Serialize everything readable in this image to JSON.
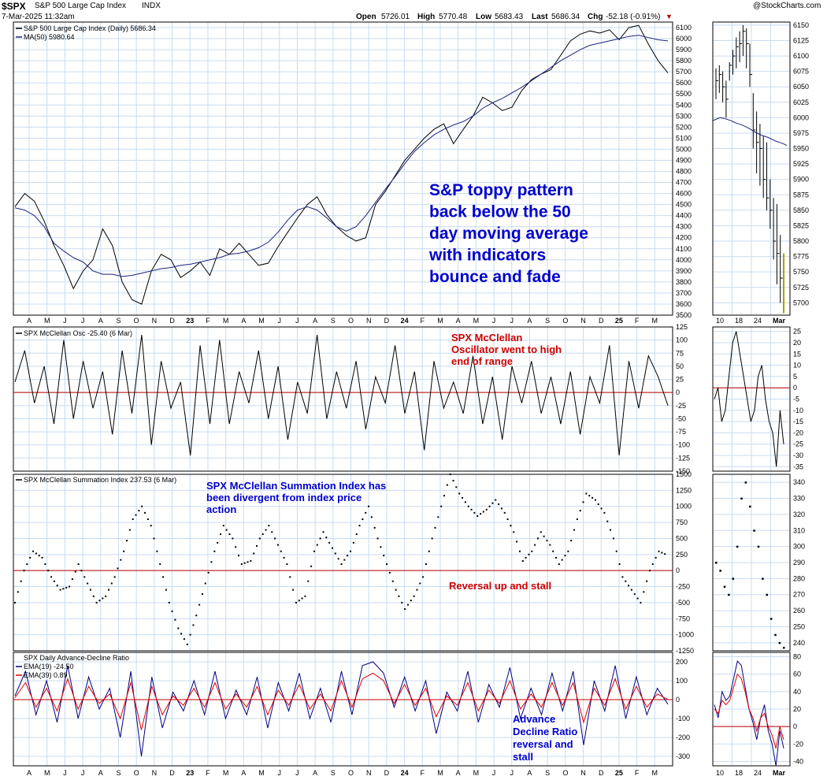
{
  "header": {
    "ticker": "$SPX",
    "name": "S&P 500 Large Cap Index",
    "exchange": "INDX",
    "datetime": "7-Mar-2025 11:32am",
    "open_label": "Open",
    "open": "5726.01",
    "high_label": "High",
    "high": "5770.48",
    "low_label": "Low",
    "low": "5683.43",
    "last_label": "Last",
    "last": "5686.34",
    "chg_label": "Chg",
    "chg": "-52.18 (-0.91%)",
    "source": "@StockCharts.com"
  },
  "colors": {
    "grid": "#c8dcf0",
    "zero_line": "#c00000",
    "price": "#000000",
    "ma": "#1a237e",
    "ema19": "#000080",
    "ema39": "#e00000",
    "annot_blue": "#0000cc",
    "annot_red": "#cc0000",
    "last_bar": "#f2e600"
  },
  "chart_data": [
    {
      "type": "line",
      "panel": "price",
      "legend": [
        "S&P 500 Large Cap Index (Daily) 5686.34",
        "MA(50) 5980.64"
      ],
      "xticks": [
        "A",
        "M",
        "J",
        "J",
        "A",
        "S",
        "O",
        "N",
        "D",
        "23",
        "F",
        "M",
        "A",
        "M",
        "J",
        "J",
        "A",
        "S",
        "O",
        "N",
        "D",
        "24",
        "F",
        "M",
        "A",
        "M",
        "J",
        "J",
        "A",
        "S",
        "O",
        "N",
        "D",
        "25",
        "F",
        "M"
      ],
      "ylim": [
        3500,
        6150
      ],
      "yticks": [
        3500,
        3600,
        3700,
        3800,
        3900,
        4000,
        4100,
        4200,
        4300,
        4400,
        4500,
        4600,
        4700,
        4800,
        4900,
        5000,
        5100,
        5200,
        5300,
        5400,
        5500,
        5600,
        5700,
        5800,
        5900,
        6000,
        6100
      ],
      "series": [
        {
          "name": "S&P 500 Large Cap Index (Daily)",
          "values": [
            4480,
            4600,
            4530,
            4350,
            4130,
            3950,
            3740,
            3900,
            4000,
            4280,
            4130,
            3800,
            3640,
            3600,
            3900,
            4050,
            4000,
            3840,
            3900,
            3980,
            3860,
            4100,
            4050,
            4150,
            4050,
            3950,
            3970,
            4120,
            4250,
            4380,
            4500,
            4570,
            4410,
            4300,
            4220,
            4170,
            4200,
            4500,
            4620,
            4760,
            4900,
            5000,
            5100,
            5180,
            5230,
            5050,
            5180,
            5300,
            5470,
            5420,
            5350,
            5380,
            5530,
            5630,
            5680,
            5720,
            5850,
            5980,
            6040,
            6070,
            6050,
            6080,
            5990,
            6100,
            6120,
            5950,
            5800,
            5690
          ]
        },
        {
          "name": "MA(50)",
          "values": [
            4470,
            4450,
            4400,
            4300,
            4150,
            4080,
            4020,
            3980,
            3900,
            3870,
            3870,
            3850,
            3860,
            3880,
            3900,
            3920,
            3930,
            3950,
            3960,
            3980,
            4000,
            4020,
            4050,
            4060,
            4080,
            4110,
            4160,
            4250,
            4360,
            4450,
            4480,
            4450,
            4380,
            4300,
            4260,
            4300,
            4400,
            4520,
            4640,
            4750,
            4870,
            4980,
            5060,
            5130,
            5180,
            5220,
            5250,
            5300,
            5370,
            5420,
            5460,
            5510,
            5560,
            5620,
            5680,
            5740,
            5800,
            5850,
            5900,
            5940,
            5960,
            5980,
            6000,
            6020,
            6030,
            6010,
            5990,
            5980
          ]
        }
      ]
    },
    {
      "type": "line",
      "panel": "mcclellan_oscillator",
      "legend": "SPX McClellan Osc -25.40 (6 Mar)",
      "ylim": [
        -150,
        125
      ],
      "yticks": [
        125,
        100,
        75,
        50,
        25,
        0,
        -25,
        -50,
        -75,
        -100,
        -125,
        -150
      ],
      "values": [
        20,
        80,
        -20,
        50,
        -60,
        100,
        -50,
        60,
        -30,
        40,
        -80,
        80,
        -40,
        110,
        -100,
        60,
        -30,
        20,
        -120,
        90,
        -60,
        100,
        -60,
        40,
        -20,
        80,
        -50,
        50,
        -90,
        20,
        -40,
        110,
        -50,
        40,
        -30,
        60,
        -70,
        30,
        -20,
        90,
        -40,
        40,
        -110,
        60,
        -30,
        20,
        -40,
        70,
        -60,
        30,
        -90,
        50,
        -20,
        60,
        -40,
        30,
        -60,
        40,
        -80,
        30,
        -20,
        90,
        -120,
        60,
        -30,
        70,
        30,
        -25
      ]
    },
    {
      "type": "scatter",
      "panel": "mcclellan_summation",
      "legend": "SPX McClellan Summation Index 237.53 (6 Mar)",
      "ylim": [
        -1250,
        1500
      ],
      "yticks": [
        1500,
        1250,
        1000,
        750,
        500,
        250,
        0,
        -250,
        -500,
        -750,
        -1000,
        -1250
      ],
      "values": [
        -500,
        0,
        300,
        200,
        -100,
        -300,
        -250,
        100,
        -200,
        -500,
        -400,
        -100,
        300,
        800,
        1000,
        700,
        100,
        -500,
        -900,
        -1150,
        -700,
        -200,
        300,
        700,
        500,
        100,
        150,
        500,
        700,
        400,
        100,
        -500,
        -400,
        300,
        600,
        350,
        100,
        300,
        700,
        1000,
        500,
        100,
        -300,
        -600,
        -400,
        -100,
        500,
        1000,
        1500,
        1200,
        1000,
        850,
        950,
        1100,
        900,
        600,
        150,
        300,
        600,
        400,
        100,
        300,
        800,
        1200,
        1100,
        900,
        500,
        -100,
        -300,
        -500,
        0,
        300,
        237
      ]
    },
    {
      "type": "line",
      "panel": "advance_decline_ratio",
      "legend": [
        "SPX Daily Advance-Decline Ratio",
        "EMA(19) -24.50",
        "EMA(39) 0.89"
      ],
      "ylim": [
        -350,
        250
      ],
      "yticks": [
        200,
        100,
        0,
        -100,
        -200,
        -300
      ],
      "series": [
        {
          "name": "EMA(19)",
          "values": [
            20,
            150,
            -80,
            100,
            -120,
            180,
            -100,
            120,
            -50,
            60,
            -200,
            150,
            -300,
            120,
            -150,
            40,
            -60,
            100,
            -80,
            150,
            -100,
            50,
            -80,
            120,
            -150,
            90,
            -60,
            140,
            -100,
            60,
            -120,
            150,
            -80,
            180,
            200,
            140,
            -40,
            120,
            -60,
            100,
            -180,
            40,
            -60,
            150,
            -120,
            80,
            -40,
            170,
            -100,
            60,
            -80,
            140,
            -60,
            150,
            -240,
            100,
            -60,
            180,
            -100,
            120,
            -80,
            60,
            -24
          ]
        },
        {
          "name": "EMA(39)",
          "values": [
            10,
            90,
            -40,
            60,
            -60,
            110,
            -50,
            70,
            -20,
            30,
            -100,
            90,
            -160,
            70,
            -80,
            20,
            -30,
            60,
            -40,
            90,
            -50,
            30,
            -40,
            70,
            -80,
            50,
            -30,
            80,
            -50,
            30,
            -60,
            100,
            -40,
            110,
            140,
            100,
            -20,
            80,
            -30,
            60,
            -90,
            20,
            -30,
            90,
            -60,
            50,
            -20,
            100,
            -50,
            30,
            -40,
            90,
            -30,
            90,
            -120,
            60,
            -30,
            110,
            -50,
            70,
            -40,
            30,
            1
          ]
        }
      ]
    },
    {
      "panel": "zoom",
      "xticks": [
        "10",
        "18",
        "24",
        "Mar"
      ],
      "price_yticks": [
        5700,
        5725,
        5750,
        5775,
        5800,
        5825,
        5850,
        5875,
        5900,
        5925,
        5950,
        5975,
        6000,
        6025,
        6050,
        6075,
        6100,
        6125,
        6150
      ],
      "price_ylim": [
        5680,
        6155
      ],
      "osc_yticks": [
        25,
        20,
        15,
        10,
        5,
        0,
        -5,
        -10,
        -15,
        -20,
        -25,
        -30,
        -35
      ],
      "osc_ylim": [
        -37,
        27
      ],
      "sum_yticks": [
        340,
        330,
        320,
        310,
        300,
        290,
        280,
        270,
        260,
        250,
        240
      ],
      "sum_ylim": [
        235,
        345
      ],
      "ad_yticks": [
        80,
        60,
        40,
        20,
        0,
        -20,
        -40
      ],
      "ad_ylim": [
        -45,
        85
      ],
      "bars": [
        {
          "h": 6080,
          "l": 6030,
          "c": 6060,
          "hl": true
        },
        {
          "h": 6085,
          "l": 6040,
          "c": 6070
        },
        {
          "h": 6075,
          "l": 6025,
          "c": 6050
        },
        {
          "h": 6060,
          "l": 6000,
          "c": 6030
        },
        {
          "h": 6090,
          "l": 6060,
          "c": 6085
        },
        {
          "h": 6110,
          "l": 6070,
          "c": 6100
        },
        {
          "h": 6130,
          "l": 6080,
          "c": 6115
        },
        {
          "h": 6140,
          "l": 6090,
          "c": 6120
        },
        {
          "h": 6150,
          "l": 6100,
          "c": 6140
        },
        {
          "h": 6145,
          "l": 6080,
          "c": 6120
        },
        {
          "h": 6120,
          "l": 6050,
          "c": 6070
        },
        {
          "h": 6040,
          "l": 5950,
          "c": 5980
        },
        {
          "h": 6010,
          "l": 5910,
          "c": 5960
        },
        {
          "h": 5990,
          "l": 5890,
          "c": 5950
        },
        {
          "h": 5970,
          "l": 5870,
          "c": 5900
        },
        {
          "h": 5960,
          "l": 5850,
          "c": 5870
        },
        {
          "h": 5900,
          "l": 5820,
          "c": 5850
        },
        {
          "h": 5870,
          "l": 5770,
          "c": 5800
        },
        {
          "h": 5860,
          "l": 5730,
          "c": 5780
        },
        {
          "h": 5810,
          "l": 5700,
          "c": 5740
        },
        {
          "h": 5780,
          "l": 5683,
          "c": 5700,
          "last": true
        }
      ],
      "osc": [
        -5,
        0,
        -15,
        -10,
        5,
        20,
        25,
        15,
        5,
        -5,
        -15,
        -10,
        5,
        10,
        -5,
        -15,
        -20,
        -35,
        -10,
        -25
      ],
      "sum": [
        290,
        285,
        275,
        270,
        280,
        300,
        330,
        340,
        325,
        310,
        300,
        280,
        270,
        255,
        245,
        240,
        237
      ],
      "ema19": [
        25,
        10,
        40,
        30,
        35,
        55,
        75,
        70,
        45,
        20,
        5,
        -15,
        10,
        25,
        -5,
        -20,
        -45,
        -5,
        -25
      ],
      "ema39": [
        20,
        15,
        30,
        25,
        30,
        45,
        60,
        55,
        40,
        20,
        10,
        -5,
        10,
        15,
        0,
        -10,
        -25,
        0,
        -15
      ]
    }
  ],
  "annotations": {
    "price_note": [
      "S&P toppy pattern",
      "back below the 50",
      "day moving average",
      "with indicators",
      "bounce and fade"
    ],
    "osc_note": [
      "SPX McClellan",
      "Oscillator went to high",
      "end of range"
    ],
    "sum_note": [
      "SPX McClellan Summation Index has",
      "been divergent from index price",
      "action"
    ],
    "sum_note2": "Reversal up and stall",
    "ad_note": [
      "Advance",
      "Decline Ratio",
      "reversal and",
      "stall"
    ]
  }
}
